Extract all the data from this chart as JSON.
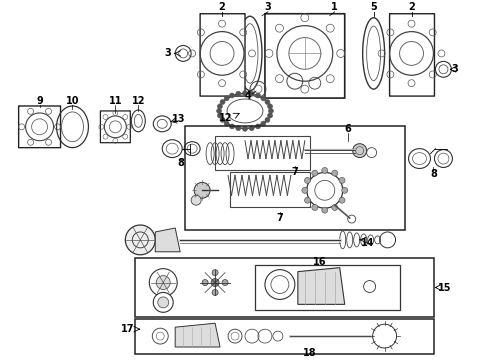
{
  "bg_color": "#ffffff",
  "figsize": [
    4.9,
    3.6
  ],
  "dpi": 100,
  "line_color": "#333333",
  "label_color": "#000000"
}
